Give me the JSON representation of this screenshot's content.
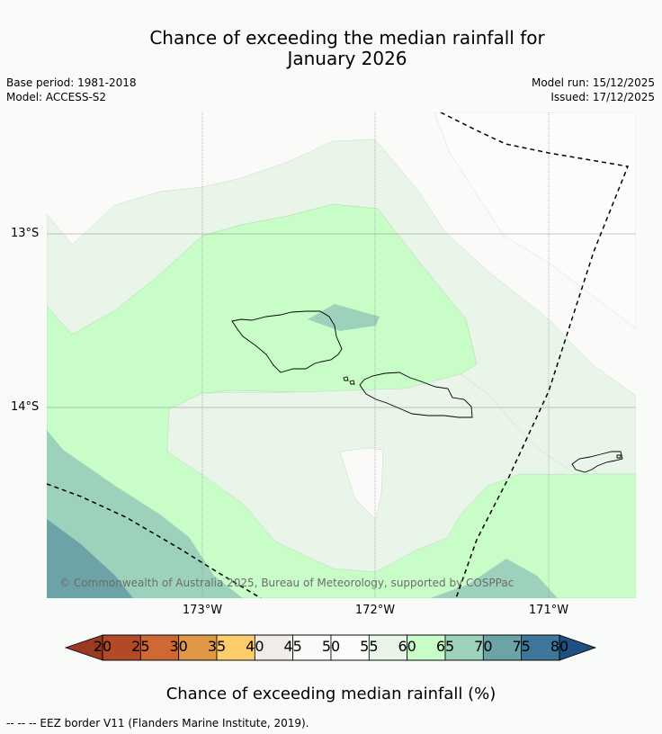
{
  "title_line1": "Chance of exceeding the median rainfall for",
  "title_line2": "January 2026",
  "meta_left": [
    "Base period: 1981-2018",
    "Model: ACCESS-S2"
  ],
  "meta_right": [
    "Model run: 15/12/2025",
    "Issued: 17/12/2025"
  ],
  "lat_labels": [
    "13°S",
    "14°S"
  ],
  "lon_labels": [
    "173°W",
    "172°W",
    "171°W"
  ],
  "credit": "© Commonwealth of Australia 2025, Bureau of Meteorology, supported by COSPPac",
  "colorbar": {
    "label": "Chance of exceeding median rainfall (%)",
    "ticks": [
      "20",
      "25",
      "30",
      "35",
      "40",
      "45",
      "50",
      "55",
      "60",
      "65",
      "70",
      "75",
      "80"
    ],
    "colors": {
      "below20": "#9a3a20",
      "20-25": "#b24a27",
      "25-30": "#cf6833",
      "30-35": "#e09746",
      "35-40": "#fdcd6b",
      "40-45": "#f0ece7",
      "45-50": "#fafbf9",
      "50-55": "#fcfcfb",
      "55-60": "#e8f5e8",
      "60-65": "#c8fdc8",
      "65-70": "#9cd1bb",
      "70-75": "#6ba3a7",
      "75-80": "#3f779a",
      "above80": "#1e5183"
    }
  },
  "legend_text": "--  --  -- EEZ border V11 (Flanders Marine Institute, 2019)."
}
